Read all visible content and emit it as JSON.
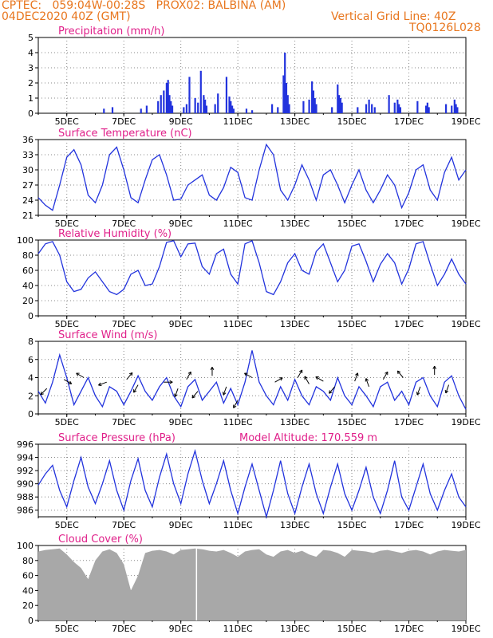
{
  "header": {
    "line1_left": "CPTEC:   059:04W-00:28S   PROX02: BALBINA (AM)",
    "line2_left": "04DEC2020 40Z (GMT)",
    "line2_right": "Vertical Grid Line: 40Z",
    "line3_right": "TQ0126L028"
  },
  "colors": {
    "header": "#e8761e",
    "title": "#e0208a",
    "line": "#2233dd",
    "cloud": "#a8a8a8"
  },
  "chart_data": [
    {
      "type": "bar",
      "title": "Precipitation (mm/h)",
      "ylim": [
        0,
        5
      ],
      "yticks": [
        0,
        1,
        2,
        3,
        4,
        5
      ],
      "xticks": [
        "5DEC",
        "7DEC",
        "9DEC",
        "11DEC",
        "13DEC",
        "15DEC",
        "17DEC",
        "19DEC"
      ],
      "x_start_day": 4.0,
      "x_end_day": 19.0,
      "series": [
        {
          "days": [
            6.3,
            6.6,
            7.6,
            7.8,
            8.2,
            8.3,
            8.4,
            8.5,
            8.55,
            8.6,
            8.65,
            8.7,
            9.1,
            9.2,
            9.3,
            9.5,
            9.6,
            9.7,
            9.8,
            9.85,
            9.9,
            10.2,
            10.3,
            10.6,
            10.7,
            10.75,
            10.8,
            10.85,
            11.3,
            11.5,
            12.2,
            12.4,
            12.6,
            12.65,
            12.7,
            12.75,
            12.8,
            13.3,
            13.5,
            13.6,
            13.65,
            13.7,
            13.75,
            14.3,
            14.5,
            14.55,
            14.6,
            14.65,
            15.2,
            15.5,
            15.6,
            15.7,
            15.8,
            16.3,
            16.5,
            16.6,
            16.65,
            16.7,
            17.3,
            17.6,
            17.65,
            17.7,
            18.3,
            18.5,
            18.6,
            18.65,
            18.7
          ],
          "values": [
            0.3,
            0.4,
            0.3,
            0.5,
            0.8,
            1.2,
            1.5,
            2.0,
            2.2,
            1.2,
            0.8,
            0.5,
            0.4,
            0.6,
            2.4,
            1.0,
            0.7,
            2.8,
            1.2,
            0.9,
            0.5,
            0.6,
            1.3,
            2.4,
            1.1,
            0.8,
            0.5,
            0.3,
            0.3,
            0.2,
            0.6,
            0.4,
            2.5,
            4.0,
            2.0,
            1.2,
            0.6,
            0.8,
            0.9,
            2.1,
            1.5,
            1.0,
            0.6,
            0.4,
            1.9,
            1.2,
            1.0,
            0.7,
            0.4,
            0.6,
            0.9,
            0.6,
            0.4,
            1.2,
            0.7,
            0.9,
            0.6,
            0.4,
            0.8,
            0.5,
            0.7,
            0.4,
            0.6,
            0.5,
            0.9,
            0.6,
            0.4
          ]
        }
      ]
    },
    {
      "type": "line",
      "title": "Surface Temperature (nC)",
      "ylim": [
        21,
        36
      ],
      "yticks": [
        21,
        24,
        27,
        30,
        33,
        36
      ],
      "xticks": [
        "5DEC",
        "7DEC",
        "9DEC",
        "11DEC",
        "13DEC",
        "15DEC",
        "17DEC",
        "19DEC"
      ],
      "series": [
        {
          "x": [
            4.0,
            4.25,
            4.5,
            4.75,
            5.0,
            5.25,
            5.5,
            5.75,
            6.0,
            6.25,
            6.5,
            6.75,
            7.0,
            7.25,
            7.5,
            7.75,
            8.0,
            8.25,
            8.5,
            8.75,
            9.0,
            9.25,
            9.5,
            9.75,
            10.0,
            10.25,
            10.5,
            10.75,
            11.0,
            11.25,
            11.5,
            11.75,
            12.0,
            12.25,
            12.5,
            12.75,
            13.0,
            13.25,
            13.5,
            13.75,
            14.0,
            14.25,
            14.5,
            14.75,
            15.0,
            15.25,
            15.5,
            15.75,
            16.0,
            16.25,
            16.5,
            16.75,
            17.0,
            17.25,
            17.5,
            17.75,
            18.0,
            18.25,
            18.5,
            18.75,
            19.0
          ],
          "values": [
            24.5,
            23.0,
            22.0,
            27.0,
            32.5,
            34.0,
            31.0,
            25.0,
            23.5,
            27.0,
            33.0,
            34.5,
            30.0,
            24.5,
            23.5,
            28.0,
            32.0,
            33.0,
            29.0,
            24.0,
            24.2,
            27.0,
            28.0,
            29.0,
            25.0,
            24.0,
            26.5,
            30.5,
            29.5,
            24.5,
            24.0,
            30.0,
            35.0,
            33.0,
            26.0,
            24.0,
            27.0,
            31.0,
            28.0,
            24.0,
            29.0,
            30.0,
            27.0,
            23.5,
            27.0,
            30.0,
            26.0,
            23.5,
            26.0,
            29.0,
            27.0,
            22.5,
            25.5,
            30.0,
            31.0,
            26.0,
            24.0,
            29.5,
            32.5,
            28.0,
            30.0
          ]
        }
      ]
    },
    {
      "type": "line",
      "title": "Relative Humidity (%)",
      "ylim": [
        0,
        100
      ],
      "yticks": [
        0,
        20,
        40,
        60,
        80,
        100
      ],
      "xticks": [
        "5DEC",
        "7DEC",
        "9DEC",
        "11DEC",
        "13DEC",
        "15DEC",
        "17DEC",
        "19DEC"
      ],
      "series": [
        {
          "x": [
            4.0,
            4.25,
            4.5,
            4.75,
            5.0,
            5.25,
            5.5,
            5.75,
            6.0,
            6.25,
            6.5,
            6.75,
            7.0,
            7.25,
            7.5,
            7.75,
            8.0,
            8.25,
            8.5,
            8.75,
            9.0,
            9.25,
            9.5,
            9.75,
            10.0,
            10.25,
            10.5,
            10.75,
            11.0,
            11.25,
            11.5,
            11.75,
            12.0,
            12.25,
            12.5,
            12.75,
            13.0,
            13.25,
            13.5,
            13.75,
            14.0,
            14.25,
            14.5,
            14.75,
            15.0,
            15.25,
            15.5,
            15.75,
            16.0,
            16.25,
            16.5,
            16.75,
            17.0,
            17.25,
            17.5,
            17.75,
            18.0,
            18.25,
            18.5,
            18.75,
            19.0
          ],
          "values": [
            82,
            95,
            98,
            80,
            45,
            32,
            35,
            50,
            58,
            45,
            32,
            28,
            35,
            55,
            60,
            40,
            42,
            65,
            97,
            99,
            78,
            95,
            96,
            65,
            55,
            82,
            88,
            55,
            42,
            95,
            99,
            70,
            32,
            28,
            45,
            70,
            82,
            60,
            55,
            85,
            95,
            70,
            45,
            60,
            92,
            95,
            72,
            45,
            68,
            82,
            70,
            42,
            62,
            95,
            98,
            68,
            40,
            55,
            75,
            55,
            42
          ]
        }
      ]
    },
    {
      "type": "line",
      "title": "Surface Wind (m/s)",
      "ylim": [
        0,
        8
      ],
      "yticks": [
        0,
        2,
        4,
        6,
        8
      ],
      "xticks": [
        "5DEC",
        "7DEC",
        "9DEC",
        "11DEC",
        "13DEC",
        "15DEC",
        "17DEC",
        "19DEC"
      ],
      "series": [
        {
          "x": [
            4.0,
            4.25,
            4.5,
            4.75,
            5.0,
            5.25,
            5.5,
            5.75,
            6.0,
            6.25,
            6.5,
            6.75,
            7.0,
            7.25,
            7.5,
            7.75,
            8.0,
            8.25,
            8.5,
            8.75,
            9.0,
            9.25,
            9.5,
            9.75,
            10.0,
            10.25,
            10.5,
            10.75,
            11.0,
            11.25,
            11.5,
            11.75,
            12.0,
            12.25,
            12.5,
            12.75,
            13.0,
            13.25,
            13.5,
            13.75,
            14.0,
            14.25,
            14.5,
            14.75,
            15.0,
            15.25,
            15.5,
            15.75,
            16.0,
            16.25,
            16.5,
            16.75,
            17.0,
            17.25,
            17.5,
            17.75,
            18.0,
            18.25,
            18.5,
            18.75,
            19.0
          ],
          "values": [
            2.5,
            1.2,
            3.5,
            6.5,
            4.0,
            1.0,
            2.5,
            4.0,
            2.0,
            0.8,
            3.0,
            2.5,
            1.0,
            2.5,
            4.2,
            2.5,
            1.5,
            3.0,
            4.0,
            2.0,
            0.8,
            3.0,
            3.8,
            1.5,
            2.5,
            3.5,
            1.2,
            2.8,
            1.0,
            3.5,
            7.0,
            3.5,
            2.0,
            1.0,
            3.0,
            1.5,
            3.8,
            2.0,
            1.0,
            3.0,
            2.5,
            1.5,
            4.0,
            2.0,
            1.0,
            3.0,
            2.0,
            0.8,
            3.0,
            3.5,
            1.5,
            2.5,
            1.0,
            3.5,
            4.0,
            2.0,
            0.8,
            3.5,
            4.2,
            2.0,
            0.5
          ]
        }
      ],
      "arrows": [
        {
          "day": 4.3,
          "speed": 2.8,
          "dir": 225
        },
        {
          "day": 4.9,
          "speed": 3.8,
          "dir": 120
        },
        {
          "day": 5.6,
          "speed": 4.0,
          "dir": 300
        },
        {
          "day": 6.4,
          "speed": 3.5,
          "dir": 250
        },
        {
          "day": 7.1,
          "speed": 3.8,
          "dir": 40
        },
        {
          "day": 7.5,
          "speed": 3.2,
          "dir": 210
        },
        {
          "day": 8.4,
          "speed": 3.5,
          "dir": 90
        },
        {
          "day": 8.9,
          "speed": 2.8,
          "dir": 200
        },
        {
          "day": 9.2,
          "speed": 3.8,
          "dir": 30
        },
        {
          "day": 9.6,
          "speed": 2.5,
          "dir": 220
        },
        {
          "day": 10.1,
          "speed": 4.2,
          "dir": 0
        },
        {
          "day": 10.6,
          "speed": 3.0,
          "dir": 200
        },
        {
          "day": 11.0,
          "speed": 1.5,
          "dir": 210
        },
        {
          "day": 11.5,
          "speed": 4.0,
          "dir": 300
        },
        {
          "day": 12.3,
          "speed": 3.5,
          "dir": 60
        },
        {
          "day": 13.1,
          "speed": 4.0,
          "dir": 30
        },
        {
          "day": 13.5,
          "speed": 3.3,
          "dir": 330
        },
        {
          "day": 14.0,
          "speed": 3.6,
          "dir": 300
        },
        {
          "day": 14.4,
          "speed": 3.0,
          "dir": 220
        },
        {
          "day": 15.1,
          "speed": 3.6,
          "dir": 20
        },
        {
          "day": 15.6,
          "speed": 3.0,
          "dir": 340
        },
        {
          "day": 16.1,
          "speed": 3.8,
          "dir": 30
        },
        {
          "day": 16.8,
          "speed": 4.0,
          "dir": 320
        },
        {
          "day": 17.4,
          "speed": 3.0,
          "dir": 200
        },
        {
          "day": 17.9,
          "speed": 4.3,
          "dir": 0
        },
        {
          "day": 18.4,
          "speed": 3.2,
          "dir": 200
        }
      ]
    },
    {
      "type": "line",
      "title": "Surface Pressure (hPa)",
      "annotation": "Model Altitude: 170.559  m",
      "ylim": [
        985,
        996
      ],
      "yticks": [
        986,
        988,
        990,
        992,
        994,
        996
      ],
      "xticks": [
        "5DEC",
        "7DEC",
        "9DEC",
        "11DEC",
        "13DEC",
        "15DEC",
        "17DEC",
        "19DEC"
      ],
      "series": [
        {
          "x": [
            4.0,
            4.25,
            4.5,
            4.75,
            5.0,
            5.25,
            5.5,
            5.75,
            6.0,
            6.25,
            6.5,
            6.75,
            7.0,
            7.25,
            7.5,
            7.75,
            8.0,
            8.25,
            8.5,
            8.75,
            9.0,
            9.25,
            9.5,
            9.75,
            10.0,
            10.25,
            10.5,
            10.75,
            11.0,
            11.25,
            11.5,
            11.75,
            12.0,
            12.25,
            12.5,
            12.75,
            13.0,
            13.25,
            13.5,
            13.75,
            14.0,
            14.25,
            14.5,
            14.75,
            15.0,
            15.25,
            15.5,
            15.75,
            16.0,
            16.25,
            16.5,
            16.75,
            17.0,
            17.25,
            17.5,
            17.75,
            18.0,
            18.25,
            18.5,
            18.75,
            19.0
          ],
          "values": [
            989.8,
            991.5,
            992.8,
            989.0,
            986.5,
            990.5,
            994.0,
            989.5,
            987.0,
            990.0,
            993.5,
            989.0,
            986.0,
            990.5,
            993.8,
            989.0,
            986.5,
            991.0,
            994.5,
            990.0,
            987.0,
            991.5,
            995.0,
            990.5,
            987.0,
            990.0,
            993.5,
            989.0,
            985.5,
            989.5,
            993.0,
            989.0,
            985.0,
            989.0,
            993.5,
            988.5,
            985.5,
            989.5,
            993.0,
            988.5,
            985.5,
            989.5,
            993.0,
            988.5,
            986.0,
            989.0,
            992.5,
            988.0,
            985.5,
            989.0,
            993.5,
            988.0,
            986.0,
            989.5,
            993.0,
            988.5,
            986.0,
            989.0,
            991.5,
            988.0,
            986.5
          ]
        }
      ]
    },
    {
      "type": "area",
      "title": "Cloud Cover (%)",
      "ylim": [
        0,
        100
      ],
      "yticks": [
        0,
        20,
        40,
        60,
        80,
        100
      ],
      "xticks": [
        "5DEC",
        "7DEC",
        "9DEC",
        "11DEC",
        "13DEC",
        "15DEC",
        "17DEC",
        "19DEC"
      ],
      "series": [
        {
          "x": [
            4.0,
            4.25,
            4.5,
            4.75,
            5.0,
            5.25,
            5.5,
            5.75,
            6.0,
            6.25,
            6.5,
            6.75,
            7.0,
            7.25,
            7.5,
            7.75,
            8.0,
            8.25,
            8.5,
            8.75,
            9.0,
            9.25,
            9.5,
            9.75,
            10.0,
            10.25,
            10.5,
            10.75,
            11.0,
            11.25,
            11.5,
            11.75,
            12.0,
            12.25,
            12.5,
            12.75,
            13.0,
            13.25,
            13.5,
            13.75,
            14.0,
            14.25,
            14.5,
            14.75,
            15.0,
            15.25,
            15.5,
            15.75,
            16.0,
            16.25,
            16.5,
            16.75,
            17.0,
            17.25,
            17.5,
            17.75,
            18.0,
            18.25,
            18.5,
            18.75,
            19.0
          ],
          "values": [
            92,
            94,
            95,
            96,
            88,
            78,
            70,
            55,
            80,
            92,
            95,
            90,
            75,
            40,
            60,
            90,
            93,
            94,
            92,
            88,
            94,
            95,
            96,
            95,
            93,
            92,
            94,
            90,
            85,
            92,
            94,
            95,
            88,
            85,
            92,
            94,
            90,
            93,
            88,
            85,
            94,
            93,
            90,
            85,
            94,
            93,
            92,
            90,
            93,
            94,
            92,
            90,
            93,
            94,
            92,
            88,
            92,
            94,
            93,
            92,
            94
          ]
        }
      ]
    }
  ]
}
